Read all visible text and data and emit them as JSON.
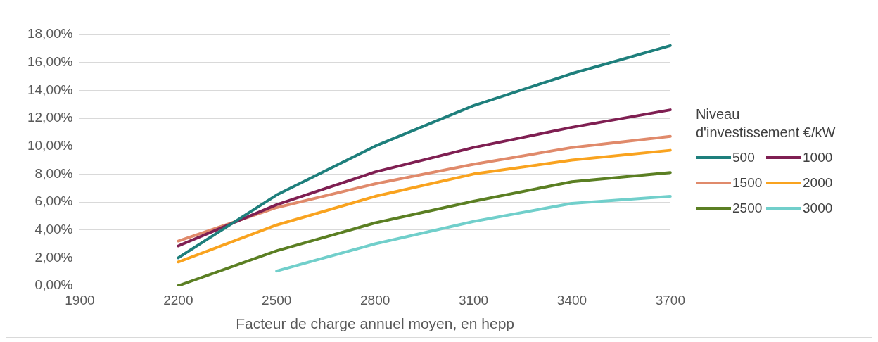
{
  "chart_data": {
    "type": "line",
    "xlabel": "Facteur de charge annuel moyen, en hepp",
    "legend_title": "Niveau d'investissement €/kW",
    "legend": "right",
    "grid": "y",
    "marker": "none",
    "line_style": "solid",
    "categories": [
      "1900",
      "2200",
      "2500",
      "2800",
      "3100",
      "3400",
      "3700"
    ],
    "ylim": [
      0,
      18
    ],
    "yticks": [
      {
        "value": 0,
        "label": "0,00%"
      },
      {
        "value": 2,
        "label": "2,00%"
      },
      {
        "value": 4,
        "label": "4,00%"
      },
      {
        "value": 6,
        "label": "6,00%"
      },
      {
        "value": 8,
        "label": "8,00%"
      },
      {
        "value": 10,
        "label": "10,00%"
      },
      {
        "value": 12,
        "label": "12,00%"
      },
      {
        "value": 14,
        "label": "14,00%"
      },
      {
        "value": 16,
        "label": "16,00%"
      },
      {
        "value": 18,
        "label": "18,00%"
      }
    ],
    "series": [
      {
        "name": "500",
        "color": "#1e7f7c",
        "values": [
          null,
          2.0,
          6.5,
          10.0,
          12.9,
          15.2,
          17.2
        ]
      },
      {
        "name": "1000",
        "color": "#7f1f52",
        "values": [
          null,
          2.85,
          5.8,
          8.15,
          9.9,
          11.35,
          12.6
        ]
      },
      {
        "name": "1500",
        "color": "#e08a6b",
        "values": [
          null,
          3.2,
          5.6,
          7.3,
          8.7,
          9.9,
          10.7
        ]
      },
      {
        "name": "2000",
        "color": "#f9a31f",
        "values": [
          null,
          1.7,
          4.35,
          6.4,
          8.0,
          9.0,
          9.7
        ]
      },
      {
        "name": "2500",
        "color": "#5b7f23",
        "values": [
          null,
          0,
          2.5,
          4.5,
          6.05,
          7.45,
          8.1
        ]
      },
      {
        "name": "3000",
        "color": "#71cfcb",
        "values": [
          null,
          null,
          1.05,
          3.0,
          4.6,
          5.9,
          6.4
        ]
      }
    ]
  }
}
